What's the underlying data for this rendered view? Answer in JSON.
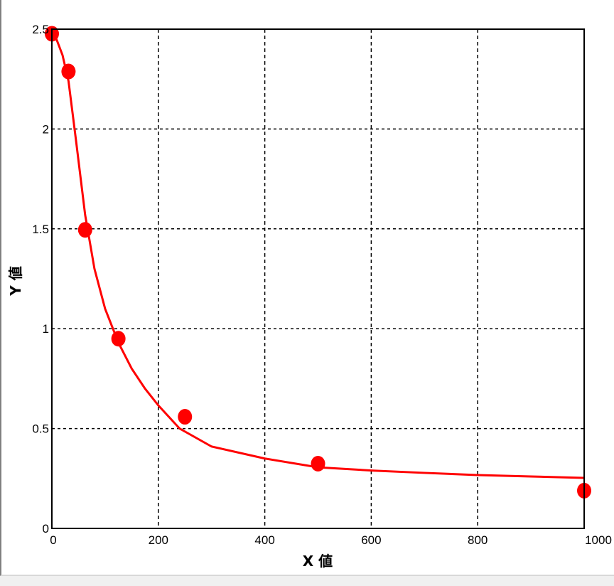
{
  "chart_data": {
    "type": "scatter",
    "title": "",
    "xlabel": "X 値",
    "ylabel": "Y 値",
    "xlim": [
      0,
      1000
    ],
    "ylim": [
      0,
      2.5
    ],
    "xticks": [
      "0",
      "200",
      "400",
      "600",
      "800",
      "1000"
    ],
    "yticks": [
      "0",
      "0.5",
      "1",
      "1.5",
      "2",
      "2.5"
    ],
    "grid": true,
    "legend": "none",
    "colors": {
      "points": "#ff0000",
      "curve": "#ff0000",
      "grid": "#000000"
    },
    "points": {
      "x": [
        0,
        31.25,
        62.5,
        125,
        250,
        500,
        1000
      ],
      "y": [
        2.477,
        2.288,
        1.495,
        0.95,
        0.559,
        0.324,
        0.189
      ]
    },
    "fit_curve": {
      "x": [
        0,
        10,
        20,
        31.25,
        45,
        62.5,
        80,
        100,
        125,
        150,
        175,
        200,
        240,
        300,
        400,
        500,
        600,
        700,
        800,
        900,
        1000
      ],
      "y": [
        2.5,
        2.44,
        2.37,
        2.24,
        1.95,
        1.57,
        1.3,
        1.1,
        0.93,
        0.8,
        0.7,
        0.616,
        0.5,
        0.41,
        0.35,
        0.306,
        0.29,
        0.278,
        0.267,
        0.26,
        0.253
      ]
    }
  }
}
